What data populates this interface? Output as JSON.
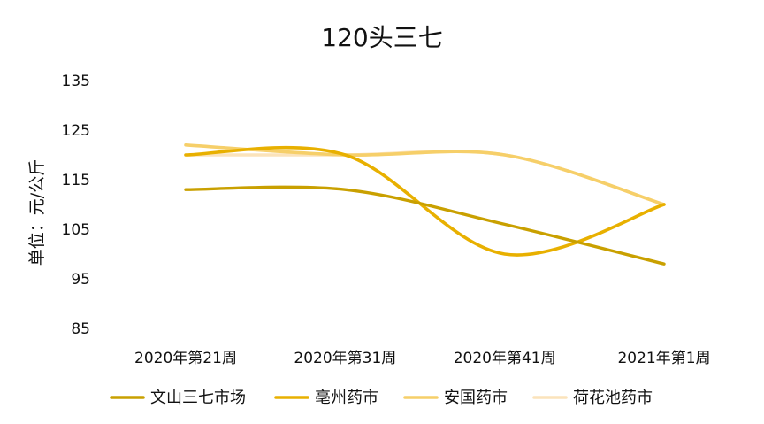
{
  "chart_data": {
    "type": "line",
    "title": "120头三七",
    "xlabel": "",
    "ylabel": "单位：元/公斤",
    "categories": [
      "2020年第21周",
      "2020年第31周",
      "2020年第41周",
      "2021年第1周"
    ],
    "y_ticks": [
      135,
      125,
      115,
      105,
      95,
      85
    ],
    "ylim": [
      85,
      135
    ],
    "grid": false,
    "legend_position": "bottom",
    "smooth": true,
    "series": [
      {
        "name": "文山三七市场",
        "color": "#C9A000",
        "values": [
          113,
          113,
          106,
          98
        ]
      },
      {
        "name": "亳州药市",
        "color": "#E8B000",
        "values": [
          120,
          120,
          100,
          110
        ]
      },
      {
        "name": "安国药市",
        "color": "#F6CF69",
        "values": [
          122,
          120,
          120,
          110
        ]
      },
      {
        "name": "荷花池药市",
        "color": "#FBE3BB",
        "values": [
          120,
          120,
          120,
          110
        ]
      }
    ]
  }
}
